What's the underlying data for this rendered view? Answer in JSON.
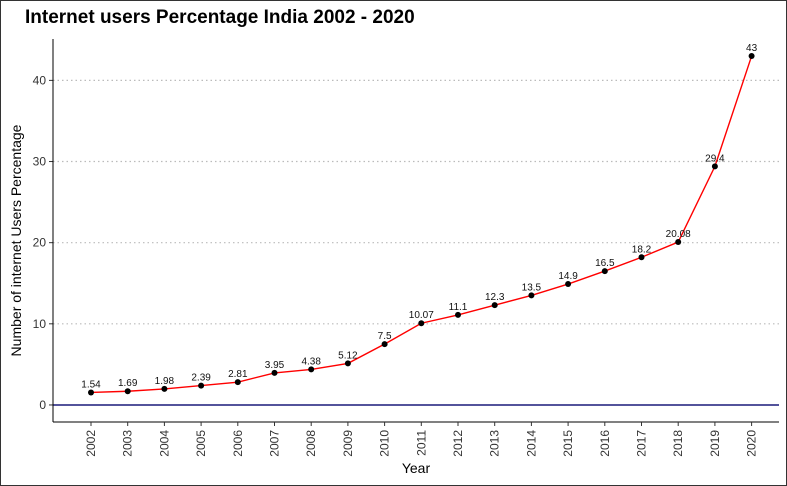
{
  "chart_data": {
    "type": "line",
    "title": "Internet users Percentage India 2002 - 2020",
    "xlabel": "Year",
    "ylabel": "Number of internet Users Percentage",
    "categories": [
      "2002",
      "2003",
      "2004",
      "2005",
      "2006",
      "2007",
      "2008",
      "2009",
      "2010",
      "2011",
      "2012",
      "2013",
      "2014",
      "2015",
      "2016",
      "2017",
      "2018",
      "2019",
      "2020"
    ],
    "values": [
      1.54,
      1.69,
      1.98,
      2.39,
      2.81,
      3.95,
      4.38,
      5.12,
      7.5,
      10.07,
      11.1,
      12.3,
      13.5,
      14.9,
      16.5,
      18.2,
      20.08,
      29.4,
      43
    ],
    "data_labels": [
      "1.54",
      "1.69",
      "1.98",
      "2.39",
      "2.81",
      "3.95",
      "4.38",
      "5.12",
      "7.5",
      "10.07",
      "11.1",
      "12.3",
      "13.5",
      "14.9",
      "16.5",
      "18.2",
      "20.08",
      "29.4",
      "43"
    ],
    "yticks": [
      0,
      10,
      20,
      30,
      40
    ],
    "ylim": [
      -2.1,
      45.1
    ],
    "grid": "horizontal dotted",
    "legend": "none",
    "colors": {
      "line": "#ff0000",
      "points": "#000000",
      "zero_line": "#1a1a7a",
      "grid": "#bbbbbb"
    }
  }
}
